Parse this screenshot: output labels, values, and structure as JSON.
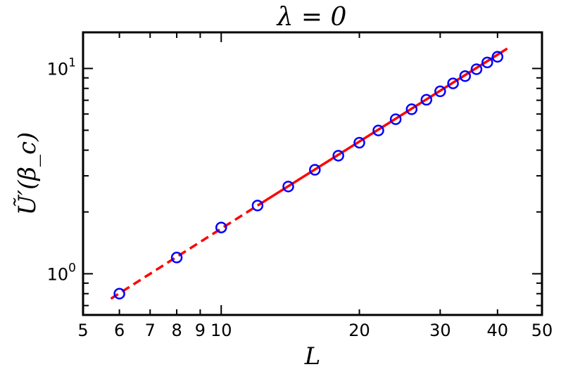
{
  "chart_data": {
    "type": "scatter",
    "title": "λ = 0",
    "xlabel": "L",
    "ylabel": "Ũ′(β_c)",
    "xscale": "log",
    "yscale": "log",
    "xlim": [
      5,
      50
    ],
    "ylim": [
      0.63,
      15
    ],
    "grid": false,
    "x_tick_labels": [
      {
        "value": 5,
        "label": "5"
      },
      {
        "value": 6,
        "label": "6"
      },
      {
        "value": 7,
        "label": "7"
      },
      {
        "value": 8,
        "label": "8"
      },
      {
        "value": 9,
        "label": "9"
      },
      {
        "value": 10,
        "label": "10"
      },
      {
        "value": 20,
        "label": "20"
      },
      {
        "value": 30,
        "label": "30"
      },
      {
        "value": 40,
        "label": "40"
      },
      {
        "value": 50,
        "label": "50"
      }
    ],
    "y_tick_labels": [
      {
        "value": 1,
        "base": "10",
        "exp": "0"
      },
      {
        "value": 10,
        "base": "10",
        "exp": "1"
      }
    ],
    "series": [
      {
        "kind": "markers",
        "color": "#0000ff",
        "x": [
          6,
          8,
          10,
          12,
          14,
          16,
          18,
          20,
          22,
          24,
          26,
          28,
          30,
          32,
          34,
          36,
          38,
          40
        ],
        "y": [
          0.8,
          1.2,
          1.68,
          2.15,
          2.66,
          3.21,
          3.76,
          4.35,
          4.99,
          5.66,
          6.33,
          7.04,
          7.74,
          8.46,
          9.18,
          9.92,
          10.7,
          11.4
        ]
      },
      {
        "kind": "fit-line",
        "color": "#ff0000",
        "style": "dashed",
        "x": [
          5.75,
          12.0
        ],
        "y": [
          0.756,
          2.15
        ]
      },
      {
        "kind": "fit-line",
        "color": "#ff0000",
        "style": "solid",
        "x": [
          12.0,
          42.0
        ],
        "y": [
          2.15,
          12.5
        ]
      }
    ]
  }
}
